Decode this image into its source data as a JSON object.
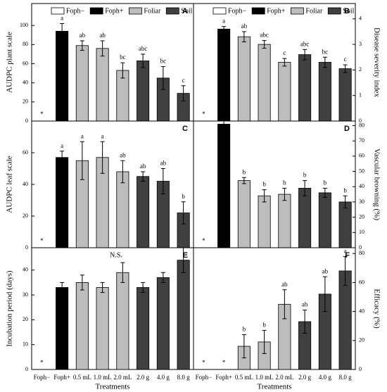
{
  "chart_data": [
    {
      "type": "bar",
      "panel": "A",
      "ylabel": "AUDPC plant scale",
      "ylim": [
        0,
        123
      ],
      "yticks": [
        0,
        20,
        40,
        60,
        80,
        100
      ],
      "y_axis_side": "left",
      "legend": [
        {
          "name": "Foph−",
          "color": "#ffffff"
        },
        {
          "name": "Foph+",
          "color": "#000000"
        },
        {
          "name": "Foliar",
          "color": "#bdbdbd"
        },
        {
          "name": "Soil",
          "color": "#404040"
        }
      ],
      "colors": [
        "#ffffff",
        "#000000",
        "#bdbdbd",
        "#bdbdbd",
        "#bdbdbd",
        "#404040",
        "#404040",
        "#404040"
      ],
      "values": [
        null,
        94,
        79,
        76,
        53,
        63,
        45,
        29
      ],
      "errors": [
        null,
        8,
        5,
        8,
        8,
        7,
        12,
        8
      ],
      "significance": [
        "*",
        "a",
        "ab",
        "ab",
        "bc",
        "abc",
        "bc",
        "c"
      ]
    },
    {
      "type": "bar",
      "panel": "B",
      "ylabel": "Disease severity index",
      "ylim": [
        0,
        4.6
      ],
      "yticks": [
        0,
        1,
        2,
        3,
        4
      ],
      "y_axis_side": "right",
      "legend": [
        {
          "name": "Foph−",
          "color": "#ffffff"
        },
        {
          "name": "Foph+",
          "color": "#000000"
        },
        {
          "name": "Foliar",
          "color": "#bdbdbd"
        },
        {
          "name": "Soil",
          "color": "#404040"
        }
      ],
      "colors": [
        "#ffffff",
        "#000000",
        "#bdbdbd",
        "#bdbdbd",
        "#bdbdbd",
        "#404040",
        "#404040",
        "#404040"
      ],
      "values": [
        null,
        3.6,
        3.3,
        3.0,
        2.3,
        2.6,
        2.3,
        2.05
      ],
      "errors": [
        null,
        0.1,
        0.2,
        0.15,
        0.15,
        0.2,
        0.2,
        0.15
      ],
      "significance": [
        "*",
        "a",
        "ab",
        "abc",
        "c",
        "abc",
        "bc",
        "c"
      ]
    },
    {
      "type": "bar",
      "panel": "C",
      "ylabel": "AUDPC leaf scale",
      "ylim": [
        0,
        80
      ],
      "yticks": [
        0,
        20,
        40,
        60
      ],
      "y_axis_side": "left",
      "colors": [
        "#ffffff",
        "#000000",
        "#bdbdbd",
        "#bdbdbd",
        "#bdbdbd",
        "#404040",
        "#404040",
        "#404040"
      ],
      "values": [
        null,
        57,
        55,
        57,
        48,
        45,
        42,
        22
      ],
      "errors": [
        null,
        4,
        12,
        10,
        7,
        3,
        8,
        7
      ],
      "significance": [
        "*",
        "a",
        "a",
        "a",
        "ab",
        "ab",
        "ab",
        "b"
      ]
    },
    {
      "type": "bar",
      "panel": "D",
      "ylabel": "Vascular browning (%)",
      "ylim": [
        0,
        83
      ],
      "yticks": [
        0,
        10,
        20,
        30,
        40,
        50,
        60,
        70,
        80
      ],
      "y_axis_side": "right",
      "colors": [
        "#ffffff",
        "#000000",
        "#bdbdbd",
        "#bdbdbd",
        "#bdbdbd",
        "#404040",
        "#404040",
        "#404040"
      ],
      "values": [
        null,
        81,
        44,
        34,
        35,
        39,
        36,
        30
      ],
      "errors": [
        null,
        5,
        2,
        4,
        4,
        5,
        3,
        4
      ],
      "significance": [
        "*",
        "a",
        "b",
        "b",
        "b",
        "b",
        "b",
        "b"
      ]
    },
    {
      "type": "bar",
      "panel": "E",
      "ylabel": "Incubation period (days)",
      "xlabel": "Treatments",
      "annotation": "N.S.",
      "ylim": [
        0,
        49
      ],
      "yticks": [
        0,
        10,
        20,
        30,
        40
      ],
      "y_axis_side": "left",
      "categories": [
        "Foph−",
        "Foph+",
        "0.5 mL",
        "1.0 mL",
        "2.0 mL",
        "2.0 g",
        "4.0 g",
        "8.0 g"
      ],
      "colors": [
        "#ffffff",
        "#000000",
        "#bdbdbd",
        "#bdbdbd",
        "#bdbdbd",
        "#404040",
        "#404040",
        "#404040"
      ],
      "values": [
        null,
        33,
        35,
        33,
        39,
        33,
        37,
        44
      ],
      "errors": [
        null,
        2,
        3,
        2,
        4,
        2,
        2,
        5
      ],
      "significance": [
        "*",
        null,
        null,
        null,
        null,
        null,
        null,
        null
      ]
    },
    {
      "type": "bar",
      "panel": "F",
      "ylabel": "Efficacy (%)",
      "xlabel": "Treatments",
      "ylim": [
        0,
        84
      ],
      "yticks": [
        0,
        20,
        40,
        60,
        80
      ],
      "y_axis_side": "right",
      "categories": [
        "Foph−",
        "Foph+",
        "0.5 mL",
        "1.0 mL",
        "2.0 mL",
        "2.0 g",
        "4.0 g",
        "8.0 g"
      ],
      "colors": [
        "#ffffff",
        "#000000",
        "#bdbdbd",
        "#bdbdbd",
        "#bdbdbd",
        "#404040",
        "#404040",
        "#404040"
      ],
      "values": [
        null,
        null,
        16,
        19,
        45,
        33,
        52,
        68
      ],
      "errors": [
        null,
        null,
        8,
        8,
        10,
        8,
        12,
        10
      ],
      "significance": [
        "*",
        "*",
        "b",
        "b",
        "ab",
        "ab",
        "ab",
        "a"
      ]
    }
  ]
}
